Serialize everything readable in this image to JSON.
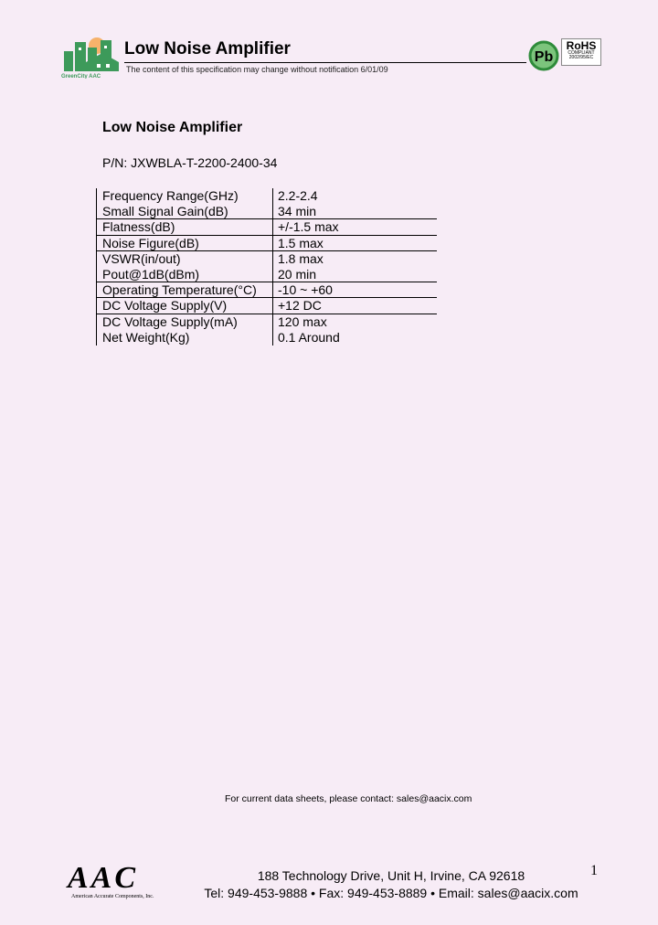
{
  "header": {
    "title": "Low Noise Amplifier",
    "note": "The content of this specification may change without notification 6/01/09",
    "logo_text": "GreenCity AAC ®",
    "pb_badge": "Pb",
    "rohs": {
      "title": "RoHS",
      "line1": "COMPLIANT",
      "line2": "2002/95/EC"
    }
  },
  "doc": {
    "title": "Low Noise Amplifier",
    "part_number": "P/N: JXWBLA-T-2200-2400-34"
  },
  "specs": [
    {
      "param": "Frequency Range(GHz)",
      "value": "2.2-2.4"
    },
    {
      "param": "Small Signal Gain(dB)",
      "value": "34 min"
    },
    {
      "param": "Flatness(dB)",
      "value": "+/-1.5 max"
    },
    {
      "param": "Noise Figure(dB)",
      "value": "1.5 max"
    },
    {
      "param": "VSWR(in/out)",
      "value": "1.8 max"
    },
    {
      "param": "Pout@1dB(dBm)",
      "value": "20 min"
    },
    {
      "param": "Operating Temperature(°C)",
      "value": "-10 ~ +60"
    },
    {
      "param": "DC Voltage Supply(V)",
      "value": "+12 DC"
    },
    {
      "param": "DC Voltage Supply(mA)",
      "value": "120 max"
    },
    {
      "param": "Net Weight(Kg)",
      "value": "0.1 Around"
    }
  ],
  "footer": {
    "contact": "For current data sheets, please contact: sales@aacix.com",
    "logo": "AAC",
    "logo_sub": "American Accurate Components, Inc.",
    "address": "188 Technology Drive, Unit H, Irvine, CA 92618",
    "phones": "Tel: 949-453-9888 • Fax: 949-453-8889 • Email: sales@aacix.com",
    "page": "1"
  }
}
